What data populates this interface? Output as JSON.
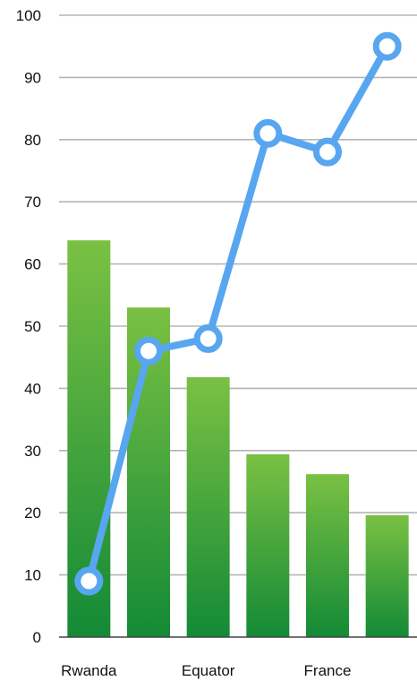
{
  "chart_data": {
    "type": "bar",
    "title": "",
    "xlabel": "",
    "ylabel": "",
    "categories": [
      "Rwanda",
      "",
      "Equator",
      "",
      "France",
      ""
    ],
    "tick_labels": [
      "0",
      "10",
      "20",
      "30",
      "40",
      "50",
      "60",
      "70",
      "80",
      "90",
      "100"
    ],
    "ylim": [
      0,
      100
    ],
    "grid": true,
    "series": [
      {
        "kind": "bar",
        "values": [
          63.8,
          53.0,
          41.8,
          29.4,
          26.2,
          19.6
        ],
        "color_top": "#7ac143",
        "color_bottom": "#138a36"
      },
      {
        "kind": "line",
        "values": [
          9,
          46,
          48,
          81,
          78,
          95
        ],
        "color": "#58a6f0"
      }
    ]
  }
}
